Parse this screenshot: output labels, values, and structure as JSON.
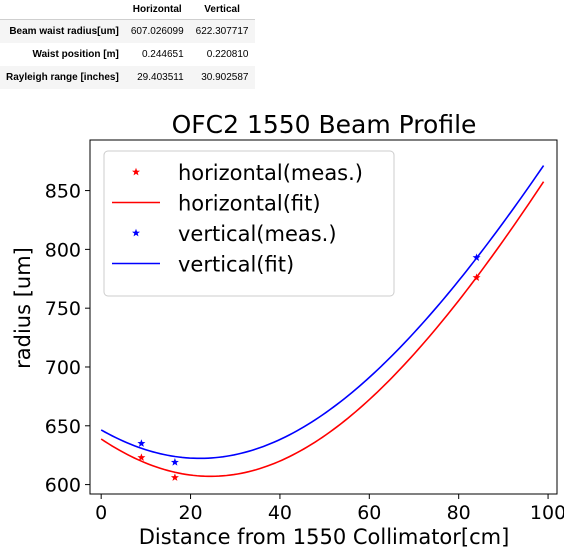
{
  "table": {
    "headers": [
      "",
      "Horizontal",
      "Vertical"
    ],
    "rows": [
      {
        "label": "Beam waist radius[um]",
        "horizontal": "607.026099",
        "vertical": "622.307717"
      },
      {
        "label": "Waist position [m]",
        "horizontal": "0.244651",
        "vertical": "0.220810"
      },
      {
        "label": "Rayleigh range [inches]",
        "horizontal": "29.403511",
        "vertical": "30.902587"
      }
    ]
  },
  "chart_data": {
    "type": "scatter",
    "title": "OFC2 1550 Beam Profile",
    "xlabel": "Distance from 1550 Collimator[cm]",
    "ylabel": "radius [um]",
    "xlim": [
      -2.5,
      102
    ],
    "ylim": [
      592,
      893
    ],
    "xticks": [
      0,
      20,
      40,
      60,
      80,
      100
    ],
    "yticks": [
      600,
      650,
      700,
      750,
      800,
      850
    ],
    "grid": false,
    "legend_position": "top-left",
    "series": [
      {
        "name": "horizontal(meas.)",
        "kind": "points",
        "color": "#ff0000",
        "marker": "star",
        "points": [
          [
            9,
            623
          ],
          [
            16.5,
            606
          ],
          [
            84,
            776
          ]
        ]
      },
      {
        "name": "horizontal(fit)",
        "kind": "curve",
        "color": "#ff0000",
        "waist_um": 607.026099,
        "waist_position_cm": 24.4651,
        "rayleigh_range_cm": 74.685,
        "x_range": [
          0,
          99
        ]
      },
      {
        "name": "vertical(meas.)",
        "kind": "points",
        "color": "#0000ff",
        "marker": "star",
        "points": [
          [
            9,
            635
          ],
          [
            16.5,
            619
          ],
          [
            84,
            793
          ]
        ]
      },
      {
        "name": "vertical(fit)",
        "kind": "curve",
        "color": "#0000ff",
        "waist_um": 622.307717,
        "waist_position_cm": 22.081,
        "rayleigh_range_cm": 78.493,
        "x_range": [
          0,
          99
        ]
      }
    ]
  }
}
